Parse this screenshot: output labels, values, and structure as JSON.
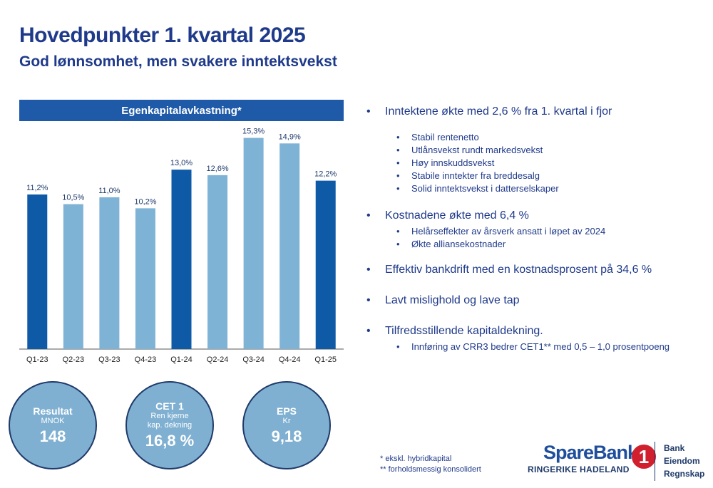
{
  "header": {
    "title": "Hovedpunkter 1. kvartal 2025",
    "subtitle": "God lønnsomhet, men svakere inntektsvekst"
  },
  "chart_data": {
    "type": "bar",
    "title": "Egenkapitalavkastning*",
    "categories": [
      "Q1-23",
      "Q2-23",
      "Q3-23",
      "Q4-23",
      "Q1-24",
      "Q2-24",
      "Q3-24",
      "Q4-24",
      "Q1-25"
    ],
    "values": [
      11.2,
      10.5,
      11.0,
      10.2,
      13.0,
      12.6,
      15.3,
      14.9,
      12.2
    ],
    "value_labels": [
      "11,2%",
      "10,5%",
      "11,0%",
      "10,2%",
      "13,0%",
      "12,6%",
      "15,3%",
      "14,9%",
      "12,2%"
    ],
    "highlight": [
      true,
      false,
      false,
      false,
      true,
      false,
      false,
      false,
      true
    ],
    "colors": {
      "highlight": "#0f5aa6",
      "normal": "#7fb3d5"
    },
    "ylim": [
      0,
      16
    ],
    "grid": false,
    "xlabel": "",
    "ylabel": ""
  },
  "bullets": [
    {
      "text": "Inntektene økte med 2,6 % fra 1. kvartal i fjor",
      "sub": [
        "Stabil rentenetto",
        "Utlånsvekst rundt markedsvekst",
        "Høy innskuddsvekst",
        "Stabile inntekter fra breddesalg",
        "Solid inntektsvekst i datterselskaper"
      ]
    },
    {
      "text": "Kostnadene økte med 6,4 %",
      "sub": [
        "Helårseffekter av årsverk ansatt i løpet av 2024",
        "Økte alliansekostnader"
      ]
    },
    {
      "text": "Effektiv bankdrift med en kostnadsprosent på 34,6 %",
      "sub": []
    },
    {
      "text": "Lavt mislighold og lave tap",
      "sub": []
    },
    {
      "text": "Tilfredsstillende kapitaldekning.",
      "sub": [
        "Innføring av CRR3 bedrer CET1** med 0,5 – 1,0 prosentpoeng"
      ]
    }
  ],
  "kpis": [
    {
      "title": "Resultat",
      "sub1": "MNOK",
      "sub2": "",
      "value": "148"
    },
    {
      "title": "CET 1",
      "sub1": "Ren kjerne",
      "sub2": "kap. dekning",
      "value": "16,8 %"
    },
    {
      "title": "EPS",
      "sub1": "Kr",
      "sub2": "",
      "value": "9,18"
    }
  ],
  "footnotes": [
    "* ekskl. hybridkapital",
    "** forholdsmessig konsolidert"
  ],
  "logo": {
    "name": "SpareBank",
    "mark": "1",
    "sub": "RINGERIKE HADELAND",
    "list": [
      "Bank",
      "Eiendom",
      "Regnskap"
    ]
  }
}
